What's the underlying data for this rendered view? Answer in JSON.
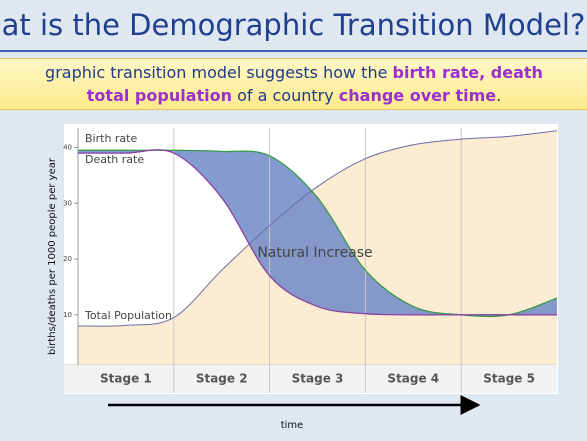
{
  "header": {
    "title": "at is the Demographic Transition Model?"
  },
  "intro": {
    "lines": [
      [
        {
          "text": "graphic transition model suggests how the ",
          "hl": false
        },
        {
          "text": "birth rate, death",
          "hl": true
        }
      ],
      [
        {
          "text": "total population",
          "hl": true
        },
        {
          "text": " of a country ",
          "hl": false
        },
        {
          "text": "change over time",
          "hl": true
        },
        {
          "text": ".",
          "hl": false
        }
      ]
    ]
  },
  "chart_data": {
    "type": "line",
    "y_label": "births/deaths per 1000 people per year",
    "x_label": "time",
    "categories": [
      "Stage 1",
      "Stage 2",
      "Stage 3",
      "Stage 4",
      "Stage 5"
    ],
    "x": [
      0,
      0.5,
      1,
      1.5,
      2,
      2.5,
      3,
      3.5,
      4,
      4.5,
      5
    ],
    "xlim": [
      0,
      5
    ],
    "ylim": [
      1,
      43.5
    ],
    "yticks": [
      10,
      20,
      30,
      40
    ],
    "series": [
      {
        "name": "Birth rate",
        "color": "#3a9a4a",
        "values": [
          39.5,
          39.5,
          39.5,
          39.3,
          38.5,
          31,
          18,
          11.5,
          10,
          10,
          13
        ]
      },
      {
        "name": "Death rate",
        "color": "#8a3fa0",
        "values": [
          39,
          39,
          39,
          31,
          17,
          11.5,
          10.2,
          10,
          10,
          10,
          10
        ]
      },
      {
        "name": "Total Population",
        "color": "#6a6aaa",
        "values": [
          8,
          8.1,
          9.5,
          18,
          26,
          33,
          38,
          40.5,
          41.5,
          42,
          43
        ]
      }
    ],
    "annotation": "Natural Increase"
  }
}
